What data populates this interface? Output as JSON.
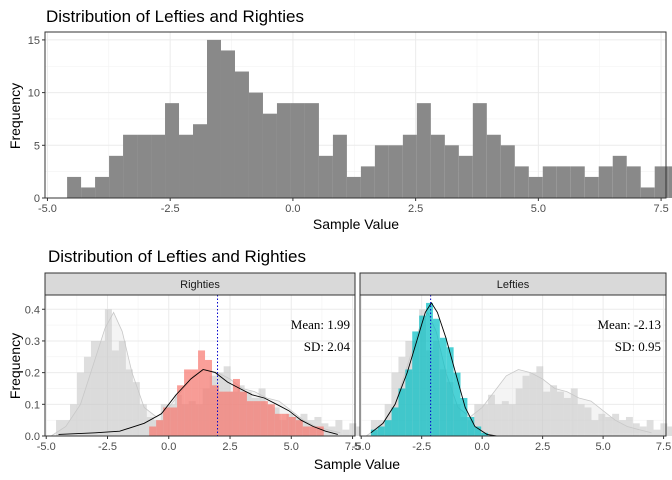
{
  "chart_data": [
    {
      "type": "bar",
      "title": "Distribution of Lefties and Righties",
      "xlabel": "Sample Value",
      "ylabel": "Frequency",
      "xlim": [
        -5.05,
        7.6
      ],
      "ylim": [
        0,
        15.75
      ],
      "xticks": [
        -5,
        -2.5,
        0,
        2.5,
        5,
        7.5
      ],
      "xtick_labels": [
        "-5.0",
        "-2.5",
        "0.0",
        "2.5",
        "5.0",
        "7.5"
      ],
      "yticks": [
        0,
        5,
        10,
        15
      ],
      "ytick_labels": [
        "0",
        "5",
        "10",
        "15"
      ],
      "grid": true,
      "bar_color": "#898989",
      "bin_width": 0.285,
      "bin_start": -4.6,
      "values": [
        2,
        1,
        2,
        4,
        6,
        6,
        6,
        9,
        6,
        7,
        15,
        14,
        12,
        10,
        8,
        9,
        9,
        9,
        4,
        6,
        2,
        3,
        5,
        5,
        6,
        9,
        6,
        5,
        4,
        9,
        6,
        5,
        3,
        2,
        3,
        3,
        3,
        2,
        3,
        4,
        3,
        1,
        3,
        3,
        3,
        2,
        1,
        1,
        1,
        0,
        1,
        0,
        0,
        1,
        0,
        1,
        1
      ]
    },
    {
      "type": "bar",
      "title": "Distribution of Lefties and Righties",
      "xlabel": "Sample Value",
      "ylabel": "Frequency",
      "xlim": [
        -5.05,
        7.6
      ],
      "ylim": [
        0,
        0.445
      ],
      "xticks": [
        -5,
        -2.5,
        0,
        2.5,
        5,
        7.5
      ],
      "xtick_labels": [
        "-5.0",
        "-2.5",
        "0.0",
        "2.5",
        "5.0",
        "7.5"
      ],
      "yticks": [
        0,
        0.1,
        0.2,
        0.3,
        0.4
      ],
      "ytick_labels": [
        "0.0",
        "0.1",
        "0.2",
        "0.3",
        "0.4"
      ],
      "grid": true,
      "bin_width": 0.285,
      "background_bin_start": -4.6,
      "background_values": [
        0.05,
        0.05,
        0.1,
        0.2,
        0.25,
        0.3,
        0.3,
        0.4,
        0.27,
        0.3,
        0.21,
        0.17,
        0.1,
        0.06,
        0.05,
        0.1,
        0.1,
        0.13,
        0.1,
        0.11,
        0.1,
        0.15,
        0.19,
        0.2,
        0.22,
        0.14,
        0.16,
        0.14,
        0.12,
        0.15,
        0.1,
        0.09,
        0.05,
        0.07,
        0.06,
        0.07,
        0.05,
        0.06,
        0.04,
        0.03,
        0.05,
        0.02,
        0.04,
        0.03,
        0.02,
        0.02,
        0.01,
        0.01,
        0.01,
        0.0,
        0.01,
        0.0,
        0.0,
        0.01,
        0.0,
        0.01,
        0.01
      ],
      "background_density": [
        [
          -4.8,
          0.0
        ],
        [
          -4.2,
          0.03
        ],
        [
          -3.6,
          0.1
        ],
        [
          -3.1,
          0.22
        ],
        [
          -2.6,
          0.34
        ],
        [
          -2.25,
          0.39
        ],
        [
          -1.9,
          0.33
        ],
        [
          -1.5,
          0.2
        ],
        [
          -1.0,
          0.09
        ],
        [
          -0.5,
          0.06
        ],
        [
          0.0,
          0.09
        ],
        [
          0.5,
          0.14
        ],
        [
          1.0,
          0.19
        ],
        [
          1.5,
          0.21
        ],
        [
          2.0,
          0.2
        ],
        [
          2.5,
          0.18
        ],
        [
          3.0,
          0.15
        ],
        [
          3.5,
          0.14
        ],
        [
          4.0,
          0.12
        ],
        [
          4.5,
          0.11
        ],
        [
          5.0,
          0.08
        ],
        [
          5.5,
          0.05
        ],
        [
          6.0,
          0.03
        ],
        [
          6.5,
          0.02
        ],
        [
          7.0,
          0.01
        ]
      ],
      "panels": [
        {
          "strip": "Righties",
          "color": "#F8766D",
          "mean_label": "Mean: 1.99",
          "sd_label": "SD: 2.04",
          "mean": 1.99,
          "bin_start": -0.8,
          "values": [
            0.03,
            0.05,
            0.09,
            0.09,
            0.16,
            0.21,
            0.21,
            0.27,
            0.24,
            0.16,
            0.14,
            0.14,
            0.18,
            0.14,
            0.11,
            0.11,
            0.11,
            0.1,
            0.07,
            0.07,
            0.06,
            0.05,
            0.03,
            0.03,
            0.03
          ],
          "density": [
            [
              -4.5,
              0.005
            ],
            [
              -3.0,
              0.01
            ],
            [
              -2.0,
              0.015
            ],
            [
              -1.0,
              0.04
            ],
            [
              -0.3,
              0.07
            ],
            [
              0.3,
              0.13
            ],
            [
              0.9,
              0.18
            ],
            [
              1.4,
              0.21
            ],
            [
              1.9,
              0.2
            ],
            [
              2.4,
              0.17
            ],
            [
              2.9,
              0.15
            ],
            [
              3.4,
              0.13
            ],
            [
              3.9,
              0.12
            ],
            [
              4.4,
              0.1
            ],
            [
              4.9,
              0.08
            ],
            [
              5.4,
              0.05
            ],
            [
              5.9,
              0.03
            ],
            [
              6.4,
              0.015
            ],
            [
              6.9,
              0.005
            ]
          ]
        },
        {
          "strip": "Lefties",
          "color": "#00BFC4",
          "mean_label": "Mean: -2.13",
          "sd_label": "SD: 0.95",
          "mean": -2.13,
          "bin_start": -4.6,
          "values": [
            0.02,
            0.03,
            0.05,
            0.09,
            0.15,
            0.21,
            0.33,
            0.38,
            0.42,
            0.37,
            0.31,
            0.28,
            0.2,
            0.12,
            0.06,
            0.03,
            0.01
          ],
          "density": [
            [
              -4.6,
              0.01
            ],
            [
              -4.1,
              0.04
            ],
            [
              -3.6,
              0.1
            ],
            [
              -3.1,
              0.2
            ],
            [
              -2.7,
              0.3
            ],
            [
              -2.35,
              0.39
            ],
            [
              -2.1,
              0.42
            ],
            [
              -1.85,
              0.39
            ],
            [
              -1.5,
              0.31
            ],
            [
              -1.1,
              0.2
            ],
            [
              -0.7,
              0.09
            ],
            [
              -0.3,
              0.03
            ],
            [
              0.2,
              0.005
            ],
            [
              0.6,
              0.0
            ],
            [
              7.0,
              0.0
            ]
          ]
        }
      ]
    }
  ]
}
